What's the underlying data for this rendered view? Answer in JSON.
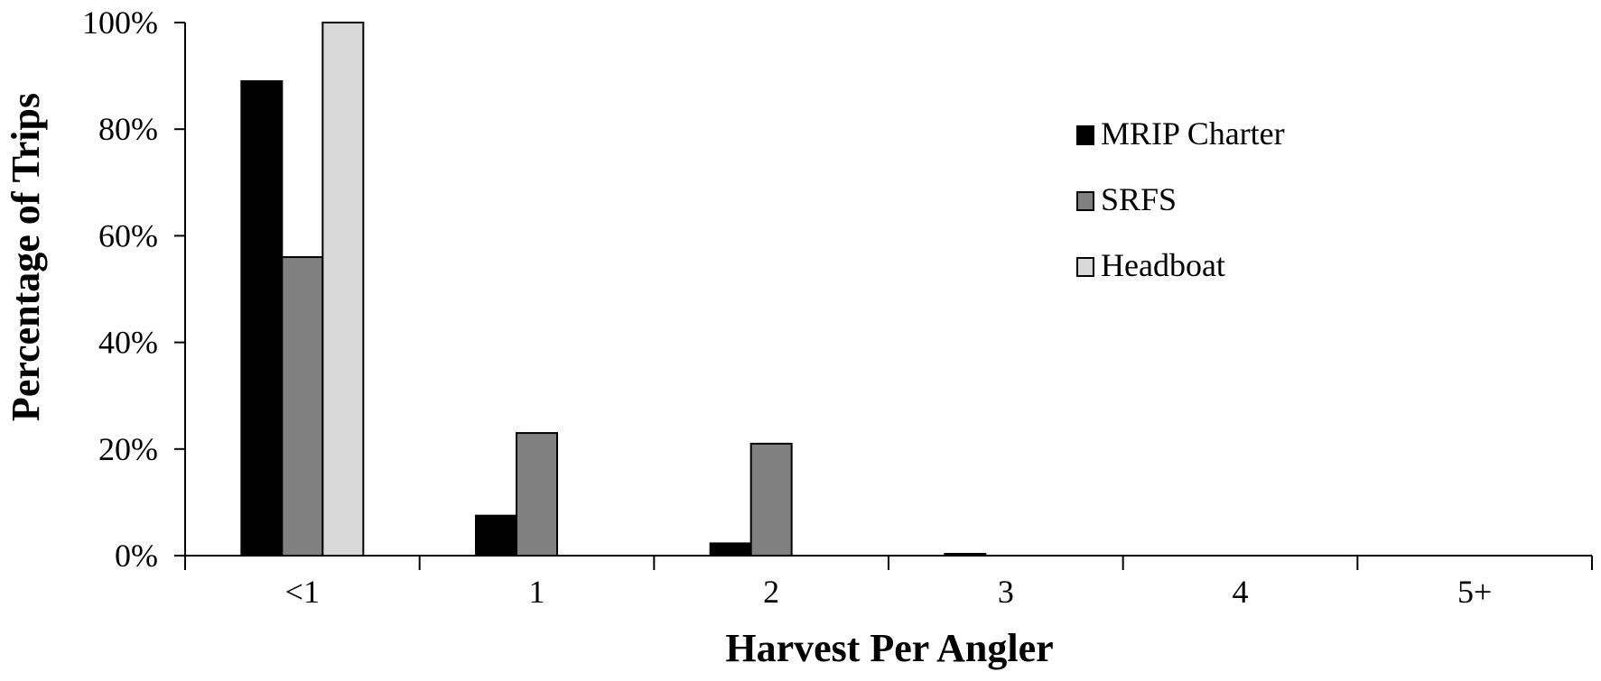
{
  "chart_data": {
    "type": "bar",
    "title": "",
    "xlabel": "Harvest Per Angler",
    "ylabel": "Percentage of Trips",
    "categories": [
      "<1",
      "1",
      "2",
      "3",
      "4",
      "5+"
    ],
    "ylim": [
      0,
      100
    ],
    "yticks": [
      0,
      20,
      40,
      60,
      80,
      100
    ],
    "ytick_labels": [
      "0%",
      "20%",
      "40%",
      "60%",
      "80%",
      "100%"
    ],
    "grid": false,
    "legend_position": "top-right",
    "series": [
      {
        "name": "MRIP Charter",
        "color": "#000000",
        "values": [
          89,
          7.5,
          2.3,
          0.3,
          0,
          0
        ]
      },
      {
        "name": "SRFS",
        "color": "#808080",
        "values": [
          56,
          23,
          21,
          0,
          0,
          0
        ]
      },
      {
        "name": "Headboat",
        "color": "#d9d9d9",
        "values": [
          100,
          0,
          0,
          0,
          0,
          0
        ]
      }
    ]
  }
}
